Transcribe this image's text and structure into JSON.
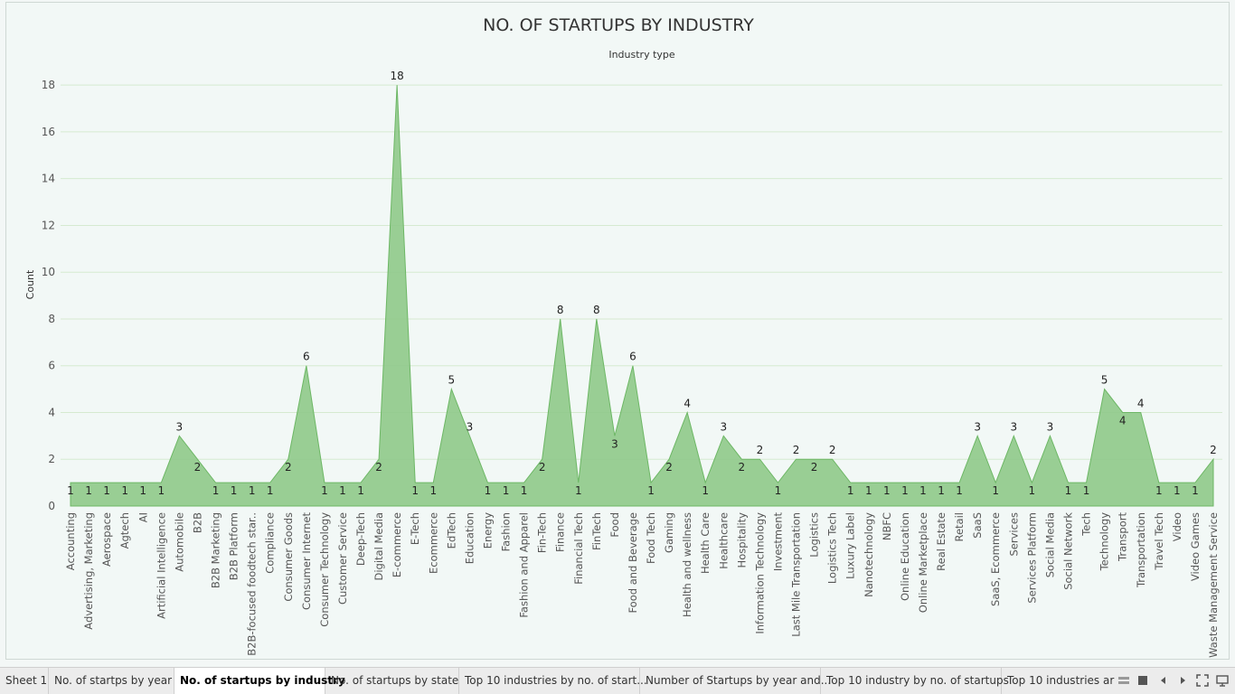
{
  "chart_data": {
    "type": "area",
    "title": "NO. OF STARTUPS BY  INDUSTRY",
    "header": "Industry type",
    "ylabel": "Count",
    "ylim": [
      0,
      19
    ],
    "yticks": [
      0,
      2,
      4,
      6,
      8,
      10,
      12,
      14,
      16,
      18
    ],
    "grid": true,
    "color": "#8fc98a",
    "line_color": "#6db765",
    "categories": [
      "Accounting",
      "Advertising, Marketing",
      "Aerospace",
      "Agtech",
      "AI",
      "Artificial Intelligence",
      "Automobile",
      "B2B",
      "B2B Marketing",
      "B2B Platform",
      "B2B-focused foodtech star..",
      "Compliance",
      "Consumer Goods",
      "Consumer Internet",
      "Consumer Technology",
      "Customer Service",
      "Deep-Tech",
      "Digital Media",
      "E-commerce",
      "E-Tech",
      "Ecommerce",
      "EdTech",
      "Education",
      "Energy",
      "Fashion",
      "Fashion and Apparel",
      "Fin-Tech",
      "Finance",
      "Financial Tech",
      "FinTech",
      "Food",
      "Food and Beverage",
      "Food Tech",
      "Gaming",
      "Health and wellness",
      "Health Care",
      "Healthcare",
      "Hospitality",
      "Information Technology",
      "Investment",
      "Last Mile Transportation",
      "Logistics",
      "Logistics Tech",
      "Luxury Label",
      "Nanotechnology",
      "NBFC",
      "Online Education",
      "Online Marketplace",
      "Real Estate",
      "Retail",
      "SaaS",
      "SaaS, Ecommerce",
      "Services",
      "Services Platform",
      "Social Media",
      "Social Network",
      "Tech",
      "Technology",
      "Transport",
      "Transportation",
      "Travel Tech",
      "Video",
      "Video Games",
      "Waste Management Service"
    ],
    "values": [
      1,
      1,
      1,
      1,
      1,
      1,
      3,
      2,
      1,
      1,
      1,
      1,
      2,
      6,
      1,
      1,
      1,
      2,
      18,
      1,
      1,
      5,
      3,
      1,
      1,
      1,
      2,
      8,
      1,
      8,
      3,
      6,
      1,
      2,
      4,
      1,
      3,
      2,
      2,
      1,
      2,
      2,
      2,
      1,
      1,
      1,
      1,
      1,
      1,
      1,
      3,
      1,
      3,
      1,
      3,
      1,
      1,
      5,
      4,
      4,
      1,
      1,
      1,
      2
    ],
    "label_positions": [
      "below",
      "below",
      "below",
      "below",
      "below",
      "below",
      "above",
      "below",
      "below",
      "below",
      "below",
      "below",
      "below",
      "above",
      "below",
      "below",
      "below",
      "below",
      "above",
      "below",
      "below",
      "above",
      "above",
      "below",
      "below",
      "below",
      "below",
      "above",
      "below",
      "above",
      "below",
      "above",
      "below",
      "below",
      "above",
      "below",
      "above",
      "below",
      "above",
      "below",
      "above",
      "below",
      "above",
      "below",
      "below",
      "below",
      "below",
      "below",
      "below",
      "below",
      "above",
      "below",
      "above",
      "below",
      "above",
      "below",
      "below",
      "above",
      "below",
      "above",
      "below",
      "below",
      "below",
      "above"
    ]
  },
  "tabs": [
    {
      "label": "Sheet 1",
      "active": false
    },
    {
      "label": "No. of startps by year",
      "active": false
    },
    {
      "label": "No. of startups by industry",
      "active": true
    },
    {
      "label": "No. of startups by state",
      "active": false
    },
    {
      "label": "Top 10 industries by no. of start...",
      "active": false
    },
    {
      "label": "Number of Startups by year and...",
      "active": false
    },
    {
      "label": "Top 10 industry by no. of startups",
      "active": false
    },
    {
      "label": "Top 10 industries ar",
      "active": false
    }
  ],
  "nav_icons": [
    "show-filmstrip-icon",
    "show-tabs-icon",
    "previous-sheet-icon",
    "next-sheet-icon",
    "fullscreen-icon",
    "presentation-mode-icon"
  ]
}
